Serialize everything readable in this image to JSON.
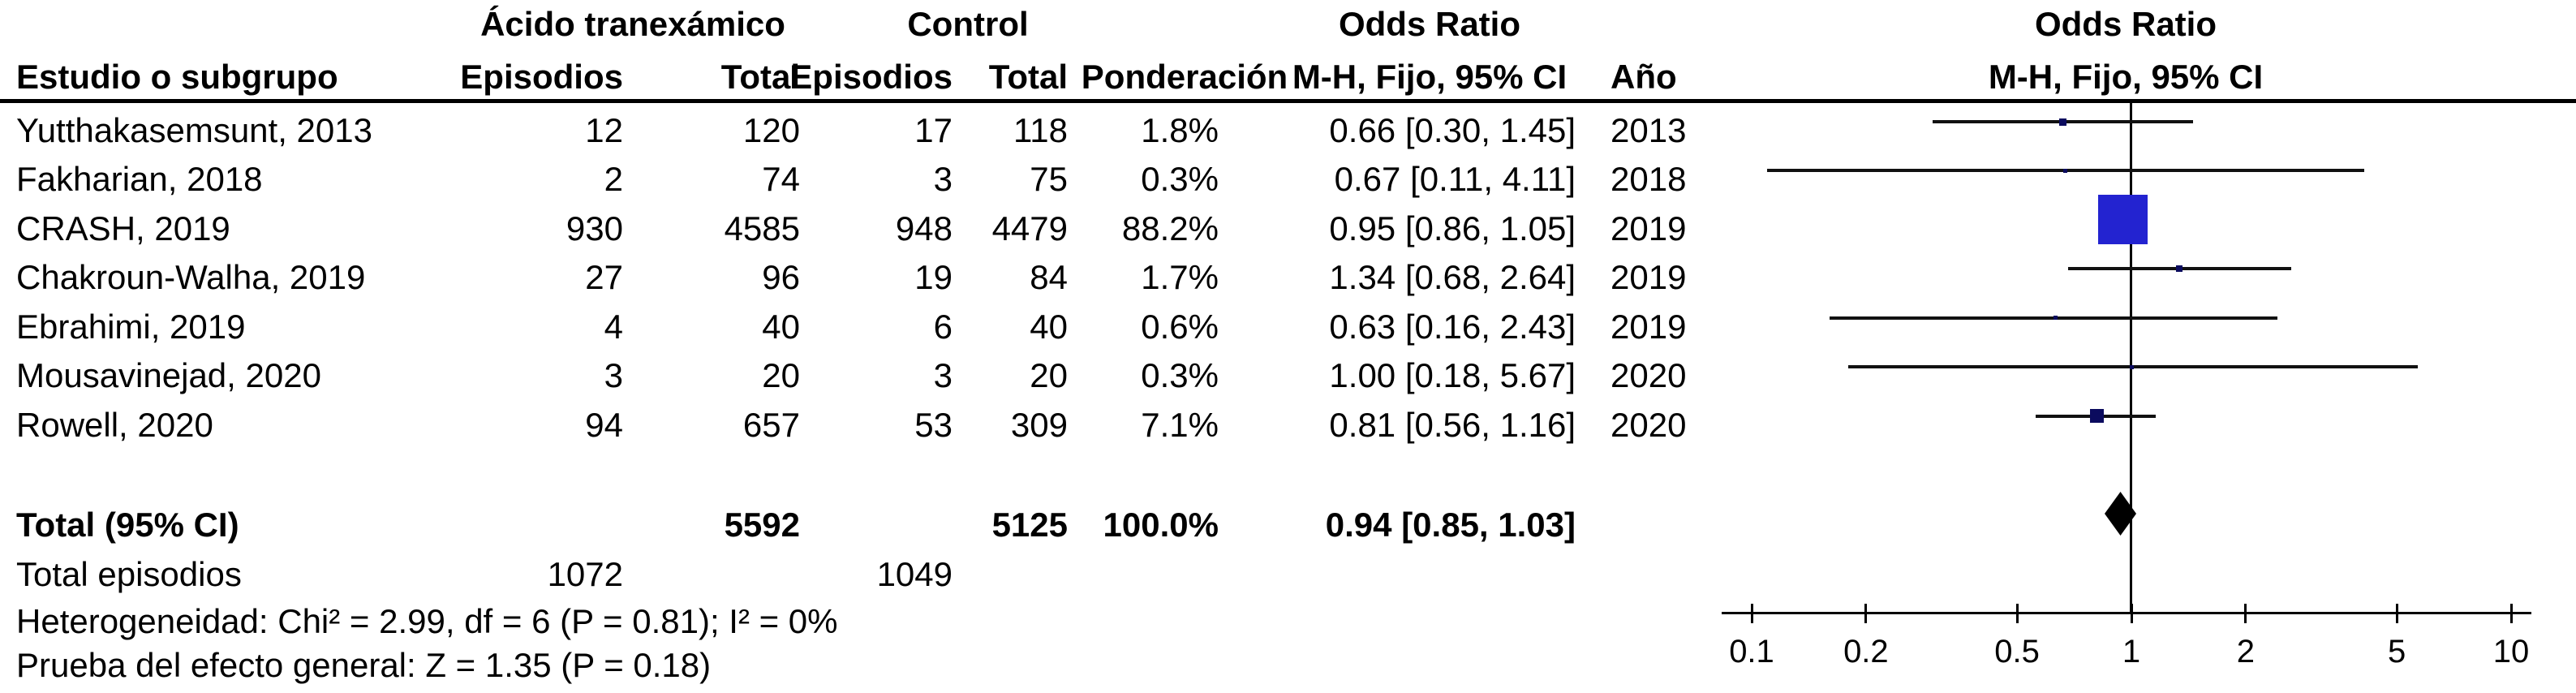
{
  "header": {
    "group_txa": "Ácido tranexámico",
    "group_control": "Control",
    "group_or_left": "Odds Ratio",
    "group_or_right": "Odds Ratio",
    "col_study": "Estudio o subgrupo",
    "col_events_txa": "Episodios",
    "col_total_txa": "Total",
    "col_events_ctl": "Episodios",
    "col_total_ctl": "Total",
    "col_weight": "Ponderación",
    "col_mh_ci_left": "M-H, Fijo, 95% CI",
    "col_year": "Año",
    "col_mh_ci_right": "M-H, Fijo, 95% CI"
  },
  "chart_data": {
    "type": "forest",
    "effect_measure": "Odds Ratio",
    "method": "M-H, Fijo, 95% CI",
    "x_axis": {
      "scale": "log",
      "ticks": [
        0.1,
        0.2,
        0.5,
        1,
        2,
        5,
        10
      ],
      "range": [
        0.1,
        10
      ],
      "tick_labels": [
        "0.1",
        "0.2",
        "0.5",
        "1",
        "2",
        "5",
        "10"
      ]
    },
    "marker_color_large": "#2323D0",
    "marker_color_small": "#0b0b5e",
    "studies": [
      {
        "name": "Yutthakasemsunt, 2013",
        "txa_events": "12",
        "txa_total": "120",
        "ctl_events": "17",
        "ctl_total": "118",
        "weight": "1.8%",
        "weight_pct": 1.8,
        "or": 0.66,
        "ci_low": 0.3,
        "ci_high": 1.45,
        "ci_label": "0.66 [0.30, 1.45]",
        "year": "2013"
      },
      {
        "name": "Fakharian, 2018",
        "txa_events": "2",
        "txa_total": "74",
        "ctl_events": "3",
        "ctl_total": "75",
        "weight": "0.3%",
        "weight_pct": 0.3,
        "or": 0.67,
        "ci_low": 0.11,
        "ci_high": 4.11,
        "ci_label": "0.67 [0.11, 4.11]",
        "year": "2018"
      },
      {
        "name": "CRASH, 2019",
        "txa_events": "930",
        "txa_total": "4585",
        "ctl_events": "948",
        "ctl_total": "4479",
        "weight": "88.2%",
        "weight_pct": 88.2,
        "or": 0.95,
        "ci_low": 0.86,
        "ci_high": 1.05,
        "ci_label": "0.95 [0.86, 1.05]",
        "year": "2019"
      },
      {
        "name": "Chakroun-Walha, 2019",
        "txa_events": "27",
        "txa_total": "96",
        "ctl_events": "19",
        "ctl_total": "84",
        "weight": "1.7%",
        "weight_pct": 1.7,
        "or": 1.34,
        "ci_low": 0.68,
        "ci_high": 2.64,
        "ci_label": "1.34 [0.68, 2.64]",
        "year": "2019"
      },
      {
        "name": "Ebrahimi, 2019",
        "txa_events": "4",
        "txa_total": "40",
        "ctl_events": "6",
        "ctl_total": "40",
        "weight": "0.6%",
        "weight_pct": 0.6,
        "or": 0.63,
        "ci_low": 0.16,
        "ci_high": 2.43,
        "ci_label": "0.63 [0.16, 2.43]",
        "year": "2019"
      },
      {
        "name": "Mousavinejad, 2020",
        "txa_events": "3",
        "txa_total": "20",
        "ctl_events": "3",
        "ctl_total": "20",
        "weight": "0.3%",
        "weight_pct": 0.3,
        "or": 1.0,
        "ci_low": 0.18,
        "ci_high": 5.67,
        "ci_label": "1.00 [0.18, 5.67]",
        "year": "2020"
      },
      {
        "name": "Rowell, 2020",
        "txa_events": "94",
        "txa_total": "657",
        "ctl_events": "53",
        "ctl_total": "309",
        "weight": "7.1%",
        "weight_pct": 7.1,
        "or": 0.81,
        "ci_low": 0.56,
        "ci_high": 1.16,
        "ci_label": "0.81 [0.56, 1.16]",
        "year": "2020"
      }
    ],
    "total": {
      "label": "Total (95% CI)",
      "txa_total": "5592",
      "ctl_total": "5125",
      "weight": "100.0%",
      "or": 0.94,
      "ci_low": 0.85,
      "ci_high": 1.03,
      "ci_label": "0.94 [0.85, 1.03]"
    },
    "total_events": {
      "label": "Total episodios",
      "txa": "1072",
      "ctl": "1049"
    },
    "heterogeneity": "Heterogeneidad: Chi² = 2.99, df = 6 (P = 0.81); I² = 0%",
    "overall_test": "Prueba del efecto general: Z = 1.35 (P = 0.18)"
  }
}
